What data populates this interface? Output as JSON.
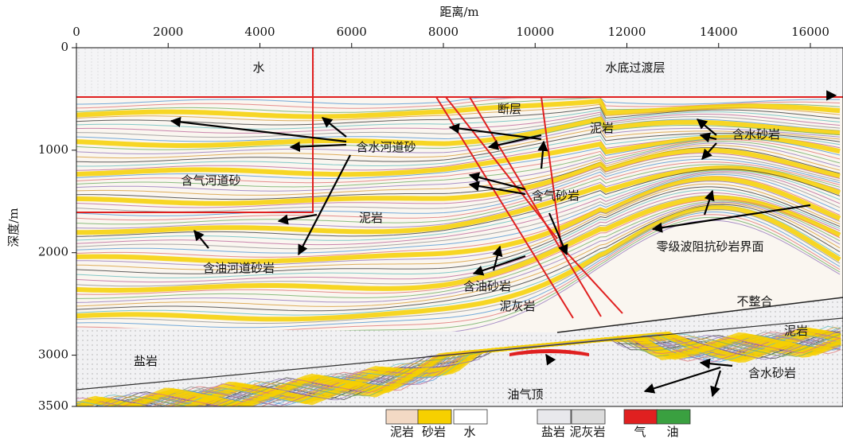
{
  "chart_data": {
    "type": "section",
    "title": "距离/m",
    "y_label": "深度/m",
    "xlim": [
      0,
      16700
    ],
    "xticks": [
      0,
      2000,
      4000,
      6000,
      8000,
      10000,
      12000,
      14000,
      16000
    ],
    "ylim": [
      0,
      3500
    ],
    "yticks": [
      0,
      1000,
      2000,
      3000,
      3500
    ],
    "y_reversed": true,
    "annotations": [
      "水",
      "水底过渡层",
      "断层",
      "泥岩",
      "含水河道砂",
      "含水砂岩",
      "含气河道砂",
      "含气砂岩",
      "泥岩",
      "零级波阻抗砂岩界面",
      "含油河道砂岩",
      "含油砂岩",
      "泥灰岩",
      "不整合",
      "泥岩",
      "盐岩",
      "含水砂岩",
      "油气顶"
    ],
    "legend": [
      {
        "name": "泥岩",
        "color": "#f3d9c4"
      },
      {
        "name": "砂岩",
        "color": "#f6d000"
      },
      {
        "name": "水",
        "color": "#ffffff"
      },
      {
        "name": "盐岩",
        "color": "#e8e8ec"
      },
      {
        "name": "泥灰岩",
        "color": "#dcdcdc"
      },
      {
        "name": "气",
        "color": "#e02020"
      },
      {
        "name": "油",
        "color": "#3aa040"
      }
    ]
  }
}
